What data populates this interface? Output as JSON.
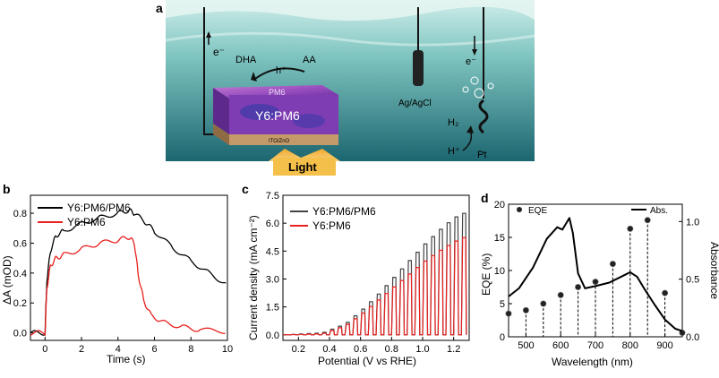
{
  "figure": {
    "panel_a": {
      "label": "a",
      "e_left": "e⁻",
      "e_right": "e⁻",
      "dha": "DHA",
      "aa": "AA",
      "h_plus": "h⁺",
      "pm6": "PM6",
      "y6pm6": "Y6:PM6",
      "ito": "ITO/ZnO",
      "light": "Light",
      "agcl": "Ag/AgCl",
      "h2": "H₂",
      "h_plus_2": "H⁺",
      "pt": "Pt",
      "colors": {
        "water_top": "#a9d9d6",
        "water_bottom": "#1f6f78",
        "film": "#7b3fb0",
        "light": "#f5b83c"
      }
    },
    "panel_b": {
      "label": "b"
    },
    "panel_c": {
      "label": "c"
    },
    "panel_d": {
      "label": "d"
    }
  },
  "chart_data": [
    {
      "type": "line",
      "panel": "b",
      "xlabel": "Time (s)",
      "ylabel": "ΔA (mOD)",
      "xlim": [
        -0.8,
        10
      ],
      "ylim": [
        -0.05,
        0.92
      ],
      "xticks": [
        "0",
        "2",
        "4",
        "6",
        "8",
        "10"
      ],
      "xtick_values": [
        0,
        2,
        4,
        6,
        8,
        10
      ],
      "yticks": [
        "0.0",
        "0.2",
        "0.4",
        "0.6",
        "0.8"
      ],
      "ytick_values": [
        0,
        0.2,
        0.4,
        0.6,
        0.8
      ],
      "series": [
        {
          "name": "Y6:PM6/PM6",
          "color": "#000000",
          "x": [
            -0.8,
            0,
            0.1,
            0.3,
            0.6,
            1,
            2,
            3,
            4,
            4.6,
            4.9,
            5.5,
            6,
            7,
            8,
            9,
            10
          ],
          "y": [
            0,
            0,
            0.35,
            0.55,
            0.65,
            0.68,
            0.73,
            0.77,
            0.8,
            0.82,
            0.8,
            0.74,
            0.68,
            0.57,
            0.48,
            0.4,
            0.32
          ]
        },
        {
          "name": "Y6:PM6",
          "color": "#e8201e",
          "x": [
            -0.8,
            0,
            0.1,
            0.3,
            0.6,
            1,
            2,
            3,
            4,
            4.6,
            4.9,
            5.1,
            5.4,
            5.8,
            6.5,
            7.5,
            8.5,
            10
          ],
          "y": [
            0,
            0,
            0.3,
            0.45,
            0.5,
            0.52,
            0.56,
            0.6,
            0.62,
            0.64,
            0.6,
            0.4,
            0.22,
            0.12,
            0.07,
            0.04,
            0.02,
            0.01
          ]
        }
      ]
    },
    {
      "type": "line",
      "panel": "c",
      "xlabel": "Potential (V vs RHE)",
      "ylabel": "Current density (mA cm⁻²)",
      "xlim": [
        0.1,
        1.3
      ],
      "ylim": [
        -0.3,
        7.5
      ],
      "xticks": [
        "0.2",
        "0.4",
        "0.6",
        "0.8",
        "1.0",
        "1.2"
      ],
      "xtick_values": [
        0.2,
        0.4,
        0.6,
        0.8,
        1.0,
        1.2
      ],
      "yticks": [
        "0.0",
        "1.5",
        "3.0",
        "4.5",
        "6.0",
        "7.5"
      ],
      "ytick_values": [
        0,
        1.5,
        3.0,
        4.5,
        6.0,
        7.5
      ],
      "chopped_light": true,
      "series": [
        {
          "name": "Y6:PM6/PM6",
          "color": "#444444",
          "x": [
            0.1,
            0.35,
            0.5,
            0.6,
            0.7,
            0.8,
            0.9,
            1.0,
            1.1,
            1.2,
            1.28
          ],
          "y": [
            0,
            0.1,
            0.6,
            1.3,
            2.1,
            3.0,
            3.9,
            4.8,
            5.6,
            6.3,
            6.6
          ]
        },
        {
          "name": "Y6:PM6",
          "color": "#e8201e",
          "x": [
            0.1,
            0.35,
            0.5,
            0.6,
            0.7,
            0.8,
            0.9,
            1.0,
            1.1,
            1.2,
            1.28
          ],
          "y": [
            0,
            0.05,
            0.5,
            1.1,
            1.8,
            2.5,
            3.2,
            3.9,
            4.5,
            5.0,
            5.3
          ]
        }
      ]
    },
    {
      "type": "line",
      "panel": "d",
      "xlabel": "Wavelength (nm)",
      "ylabel": "EQE (%)",
      "y2label": "Absorbance",
      "xlim": [
        450,
        950
      ],
      "ylim": [
        0,
        20
      ],
      "y2lim": [
        0,
        1.15
      ],
      "xticks": [
        "500",
        "600",
        "700",
        "800",
        "900"
      ],
      "xtick_values": [
        500,
        600,
        700,
        800,
        900
      ],
      "yticks": [
        "0",
        "5",
        "10",
        "15",
        "20"
      ],
      "ytick_values": [
        0,
        5,
        10,
        15,
        20
      ],
      "y2ticks": [
        "0.0",
        "0.5",
        "1.0"
      ],
      "y2tick_values": [
        0,
        0.5,
        1.0
      ],
      "series": [
        {
          "name": "EQE",
          "color": "#000000",
          "style": "stems",
          "x": [
            450,
            500,
            550,
            600,
            650,
            700,
            750,
            800,
            850,
            900,
            950
          ],
          "y": [
            3.5,
            4,
            5,
            6.3,
            7.5,
            8.3,
            11,
            16.3,
            17.6,
            6.6,
            0.6
          ]
        },
        {
          "name": "Abs.",
          "color": "#000000",
          "style": "line",
          "x": [
            450,
            480,
            520,
            560,
            590,
            605,
            615,
            625,
            635,
            650,
            670,
            700,
            740,
            780,
            800,
            820,
            840,
            870,
            900,
            930,
            950
          ],
          "y": [
            0.35,
            0.42,
            0.6,
            0.85,
            0.95,
            0.93,
            0.98,
            1.03,
            0.9,
            0.55,
            0.42,
            0.44,
            0.47,
            0.53,
            0.56,
            0.52,
            0.42,
            0.28,
            0.15,
            0.07,
            0.05
          ]
        }
      ]
    }
  ]
}
